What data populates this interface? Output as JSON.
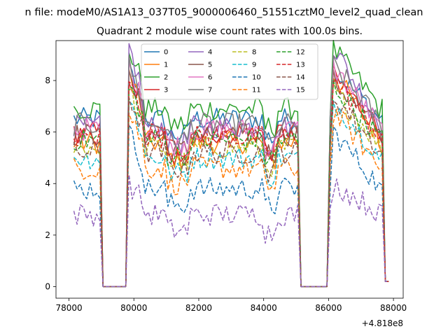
{
  "figure": {
    "suptitle": "n file: modeM0/AS1A13_037T05_9000006460_51551cztM0_level2_quad_clean",
    "title": "Quadrant 2 module wise count rates with 100.0s bins."
  },
  "chart_data": {
    "type": "line",
    "title": "Quadrant 2 module wise count rates with 100.0s bins.",
    "xlabel": "",
    "ylabel": "",
    "x_offset_label": "+4.818e8",
    "xlim": [
      77600,
      88300
    ],
    "ylim": [
      -0.45,
      9.55
    ],
    "x_ticks": [
      78000,
      80000,
      82000,
      84000,
      86000,
      88000
    ],
    "x_tick_labels": [
      "78000",
      "80000",
      "82000",
      "84000",
      "86000",
      "88000"
    ],
    "y_ticks": [
      0,
      2,
      4,
      6,
      8
    ],
    "y_tick_labels": [
      "0",
      "2",
      "4",
      "6",
      "8"
    ],
    "x_start": 78150,
    "x_step": 100,
    "n_points": 98,
    "gaps": [
      [
        79000,
        79800
      ],
      [
        85100,
        86000
      ]
    ],
    "legend_location": "upper center",
    "legend_columns": 4,
    "grid": false,
    "series": [
      {
        "name": "0",
        "color": "#1f77b4",
        "dash": "solid",
        "level": 6.5,
        "spike": 8.4
      },
      {
        "name": "1",
        "color": "#ff7f0e",
        "dash": "solid",
        "level": 5.6,
        "spike": 8.3
      },
      {
        "name": "2",
        "color": "#2ca02c",
        "dash": "solid",
        "level": 6.9,
        "spike": 9.2
      },
      {
        "name": "3",
        "color": "#d62728",
        "dash": "solid",
        "level": 6.0,
        "spike": 8.2
      },
      {
        "name": "4",
        "color": "#9467bd",
        "dash": "solid",
        "level": 6.2,
        "spike": 9.3
      },
      {
        "name": "5",
        "color": "#8c564b",
        "dash": "solid",
        "level": 5.9,
        "spike": 8.0
      },
      {
        "name": "6",
        "color": "#e377c2",
        "dash": "solid",
        "level": 6.1,
        "spike": 8.5
      },
      {
        "name": "7",
        "color": "#7f7f7f",
        "dash": "solid",
        "level": 6.3,
        "spike": 8.6
      },
      {
        "name": "8",
        "color": "#bcbd22",
        "dash": "dashed",
        "level": 5.4,
        "spike": 7.6
      },
      {
        "name": "9",
        "color": "#17becf",
        "dash": "dashed",
        "level": 5.0,
        "spike": 7.2
      },
      {
        "name": "10",
        "color": "#1f77b4",
        "dash": "dashed",
        "level": 3.8,
        "spike": 6.0
      },
      {
        "name": "11",
        "color": "#ff7f0e",
        "dash": "dashed",
        "level": 4.6,
        "spike": 6.8
      },
      {
        "name": "12",
        "color": "#2ca02c",
        "dash": "dashed",
        "level": 5.7,
        "spike": 7.8
      },
      {
        "name": "13",
        "color": "#d62728",
        "dash": "dashed",
        "level": 5.8,
        "spike": 8.0
      },
      {
        "name": "14",
        "color": "#8c564b",
        "dash": "dashed",
        "level": 5.2,
        "spike": 7.4
      },
      {
        "name": "15",
        "color": "#9467bd",
        "dash": "dashed",
        "level": 2.8,
        "spike": 4.0
      }
    ]
  }
}
